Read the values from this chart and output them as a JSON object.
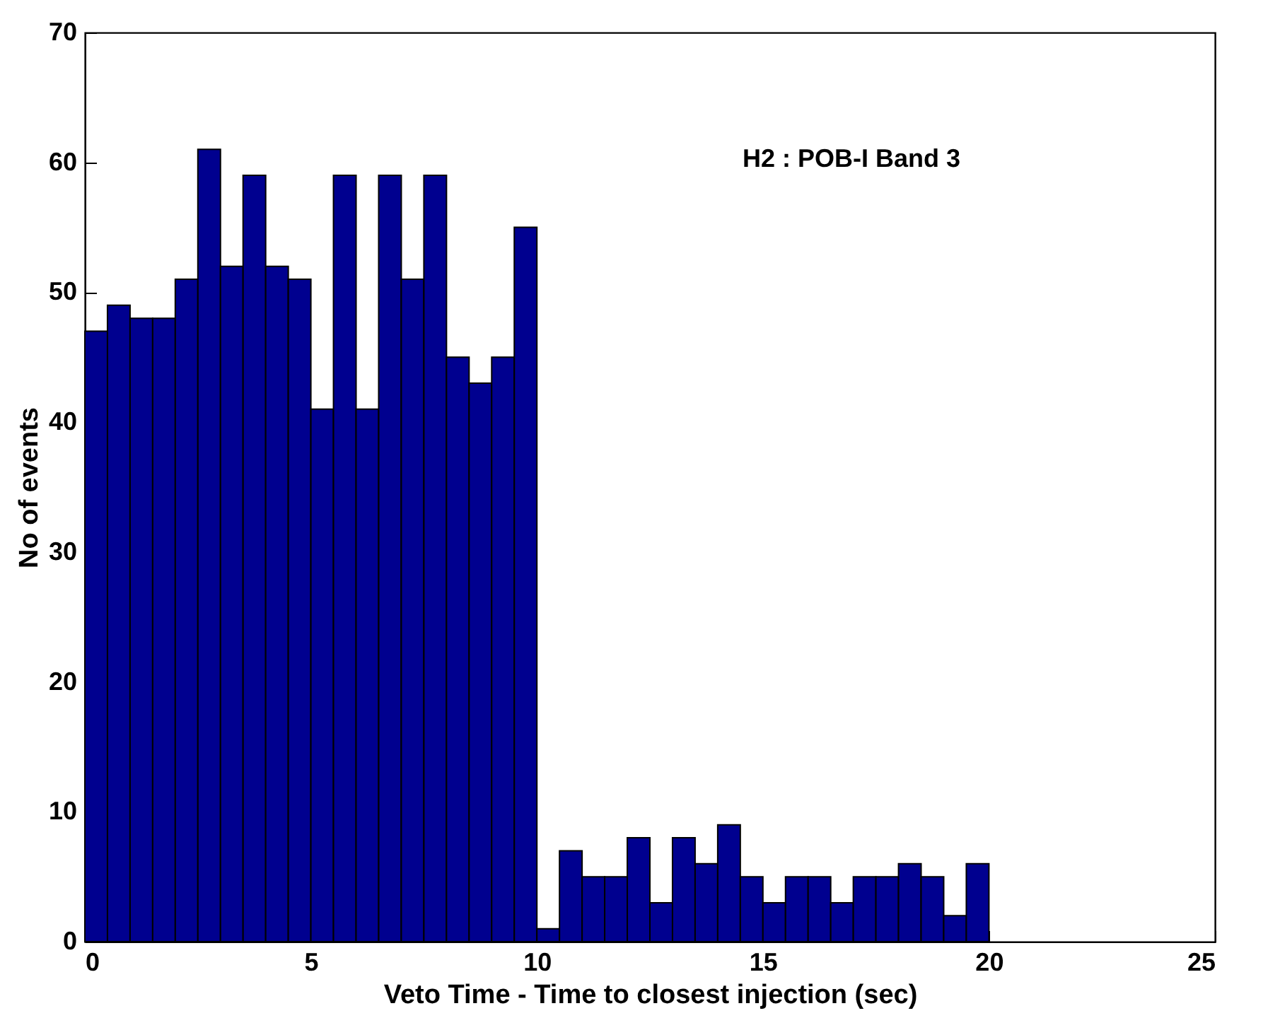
{
  "chart_data": {
    "type": "histogram",
    "xlabel": "Veto Time - Time to closest injection (sec)",
    "ylabel": "No of events",
    "annotations": [
      "H2 : POB-I Band 3"
    ],
    "bins": [
      0,
      0.5,
      1,
      1.5,
      2,
      2.5,
      3,
      3.5,
      4,
      4.5,
      5,
      5.5,
      6,
      6.5,
      7,
      7.5,
      8,
      8.5,
      9,
      9.5,
      10,
      10.5,
      11,
      11.5,
      12,
      12.5,
      13,
      13.5,
      14,
      14.5,
      15,
      15.5,
      16,
      16.5,
      17,
      17.5,
      18,
      18.5,
      19,
      19.5,
      20
    ],
    "values": [
      47,
      49,
      48,
      48,
      51,
      61,
      52,
      59,
      52,
      51,
      41,
      59,
      41,
      59,
      51,
      59,
      45,
      43,
      45,
      55,
      1,
      7,
      5,
      5,
      8,
      3,
      8,
      6,
      9,
      5,
      3,
      5,
      5,
      3,
      5,
      5,
      6,
      5,
      2,
      6
    ],
    "color": "#00008f",
    "xlim": [
      0,
      25
    ],
    "xticks": [
      0,
      5,
      10,
      15,
      20,
      25
    ],
    "ylim": [
      0,
      70
    ],
    "yticks": [
      0,
      10,
      20,
      30,
      40,
      50,
      60,
      70
    ],
    "grid": false
  }
}
